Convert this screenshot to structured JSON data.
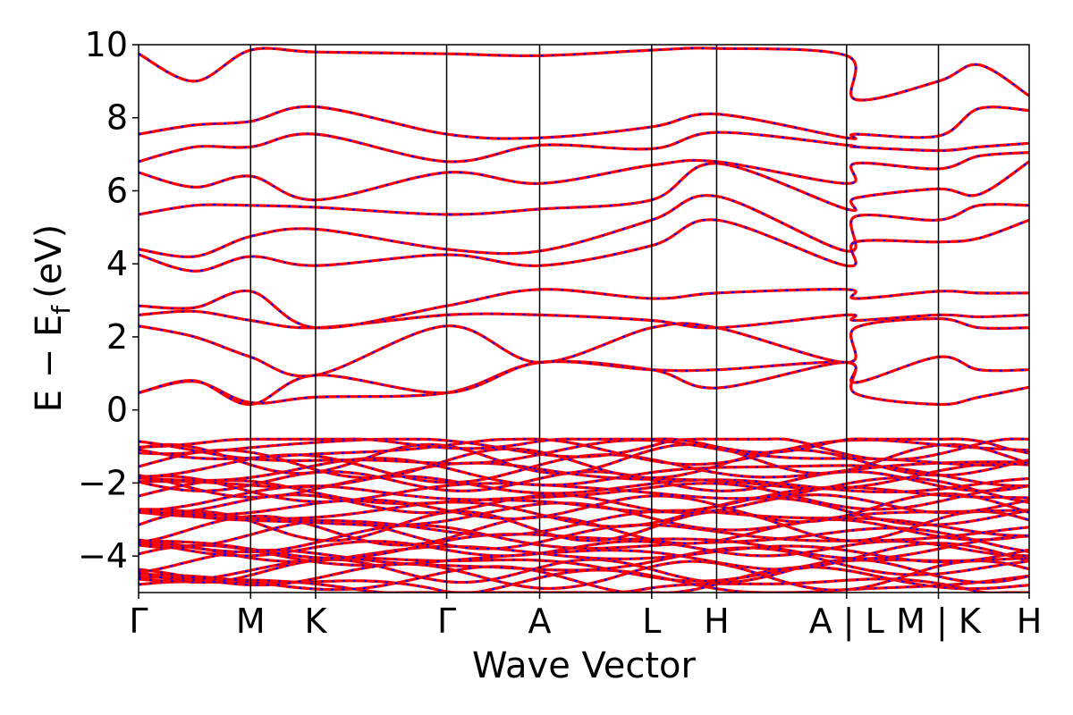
{
  "chart_data": {
    "type": "line",
    "xlabel": "Wave Vector",
    "ylabel_main": "E − E",
    "ylabel_sub": "f",
    "ylabel_unit": "(eV)",
    "ylim": [
      -5,
      10
    ],
    "yticks": [
      -4,
      -2,
      0,
      2,
      4,
      6,
      8,
      10
    ],
    "ytick_labels": [
      "−4",
      "−2",
      "0",
      "2",
      "4",
      "6",
      "8",
      "10"
    ],
    "xlim": [
      0,
      7.95
    ],
    "kpath": [
      {
        "label": "Γ",
        "x": 0.0
      },
      {
        "label": "M",
        "x": 1.0
      },
      {
        "label": "K",
        "x": 1.58
      },
      {
        "label": "Γ",
        "x": 2.75
      },
      {
        "label": "A",
        "x": 3.58
      },
      {
        "label": "L",
        "x": 4.58
      },
      {
        "label": "H",
        "x": 5.16
      },
      {
        "label": "A | L",
        "x": 6.32
      },
      {
        "label": "M | K",
        "x": 7.14
      },
      {
        "label": "H",
        "x": 7.95
      }
    ],
    "series_colors": {
      "dft": "#ff0000",
      "wannier": "#0000ff"
    },
    "valence_band_range": [
      -5,
      -0.8
    ],
    "bands": [
      {
        "name": "b1",
        "values": [
          0.47,
          0.78,
          0.2,
          0.35,
          0.47,
          1.3,
          1.1,
          0.6,
          1.3,
          0.45,
          0.15,
          0.35,
          0.62
        ]
      },
      {
        "name": "b2",
        "values": [
          0.47,
          0.8,
          0.15,
          0.95,
          0.47,
          1.3,
          1.1,
          1.1,
          1.3,
          0.75,
          1.45,
          1.1,
          1.1
        ]
      },
      {
        "name": "b3",
        "values": [
          2.3,
          2.0,
          1.45,
          0.95,
          2.3,
          1.3,
          2.25,
          2.25,
          1.3,
          2.25,
          2.5,
          2.25,
          2.25
        ]
      },
      {
        "name": "b4",
        "values": [
          2.6,
          2.7,
          2.45,
          2.25,
          2.6,
          2.6,
          2.45,
          2.25,
          2.6,
          2.45,
          2.6,
          2.55,
          2.6
        ]
      },
      {
        "name": "b5",
        "values": [
          2.85,
          2.8,
          3.25,
          2.25,
          2.85,
          3.3,
          3.05,
          3.2,
          3.3,
          3.05,
          3.25,
          3.2,
          3.2
        ]
      },
      {
        "name": "b6",
        "values": [
          4.25,
          3.8,
          4.2,
          3.95,
          4.25,
          3.95,
          4.5,
          5.2,
          3.95,
          4.6,
          4.6,
          4.7,
          5.2
        ]
      },
      {
        "name": "b7",
        "values": [
          4.4,
          4.2,
          4.75,
          4.95,
          4.4,
          4.35,
          5.2,
          5.85,
          4.35,
          5.3,
          5.2,
          5.6,
          5.6
        ]
      },
      {
        "name": "b8",
        "values": [
          5.35,
          5.6,
          5.6,
          5.55,
          5.35,
          5.5,
          5.75,
          6.75,
          5.5,
          5.8,
          6.05,
          5.9,
          6.8
        ]
      },
      {
        "name": "b9",
        "values": [
          6.5,
          6.1,
          6.4,
          5.75,
          6.5,
          6.2,
          6.7,
          6.8,
          6.2,
          6.75,
          6.6,
          6.95,
          7.05
        ]
      },
      {
        "name": "b10",
        "values": [
          6.8,
          7.2,
          7.2,
          7.55,
          6.8,
          7.25,
          7.15,
          7.6,
          7.25,
          7.2,
          7.1,
          7.2,
          7.3
        ]
      },
      {
        "name": "b11",
        "values": [
          7.55,
          7.8,
          7.9,
          8.3,
          7.55,
          7.45,
          7.75,
          8.1,
          7.45,
          7.55,
          7.5,
          8.25,
          8.2
        ]
      },
      {
        "name": "b12",
        "values": [
          9.75,
          9.0,
          9.85,
          9.8,
          9.75,
          9.7,
          9.85,
          9.9,
          9.7,
          8.5,
          9.0,
          9.45,
          8.6
        ]
      }
    ],
    "band_x": [
      0.0,
      0.5,
      1.0,
      1.58,
      2.75,
      3.58,
      4.58,
      5.16,
      6.32,
      6.4,
      7.14,
      7.5,
      7.95
    ]
  }
}
